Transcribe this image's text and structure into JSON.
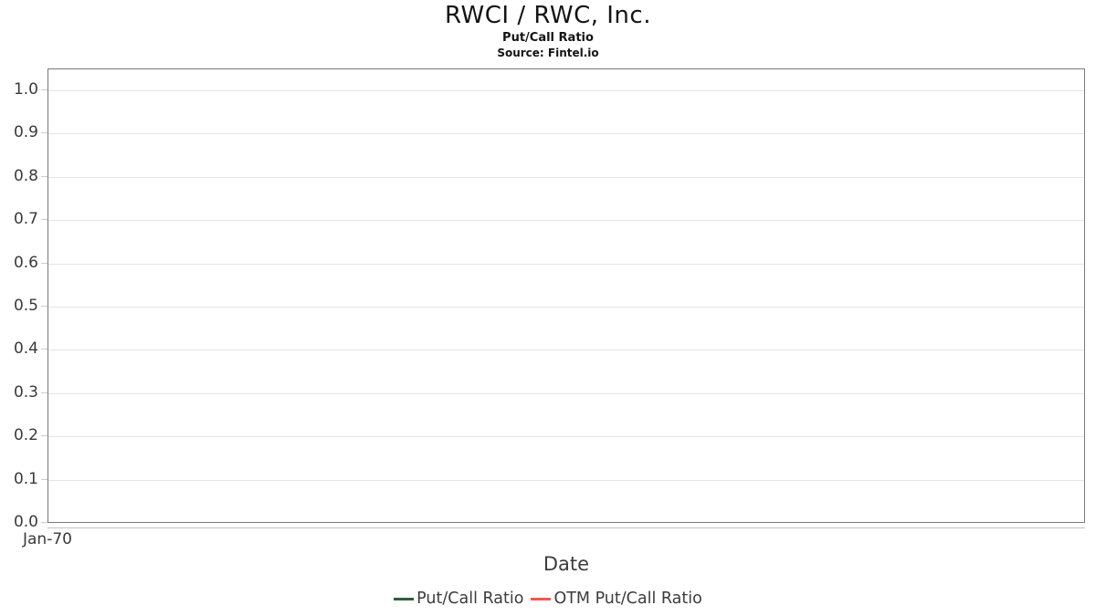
{
  "header": {
    "title": "RWCI / RWC, Inc.",
    "subtitle": "Put/Call Ratio",
    "source": "Source: Fintel.io"
  },
  "axes": {
    "xlabel": "Date",
    "x_tick": "Jan-70"
  },
  "legend": {
    "items": [
      {
        "label": "Put/Call Ratio",
        "color": "#2d5f3c"
      },
      {
        "label": "OTM Put/Call Ratio",
        "color": "#f4584e"
      }
    ]
  },
  "chart_data": {
    "type": "line",
    "title": "RWCI / RWC, Inc.",
    "subtitle": "Put/Call Ratio",
    "source": "Source: Fintel.io",
    "xlabel": "Date",
    "ylabel": "",
    "x_ticks": [
      "Jan-70"
    ],
    "y_ticks": [
      "0.0",
      "0.1",
      "0.2",
      "0.3",
      "0.4",
      "0.5",
      "0.6",
      "0.7",
      "0.8",
      "0.9",
      "1.0"
    ],
    "ylim": [
      0.0,
      1.05
    ],
    "grid": "horizontal",
    "legend_position": "bottom-center",
    "series": [
      {
        "name": "Put/Call Ratio",
        "color": "#2d5f3c",
        "x": [],
        "values": []
      },
      {
        "name": "OTM Put/Call Ratio",
        "color": "#f4584e",
        "x": [],
        "values": []
      }
    ]
  },
  "colors": {
    "plot_border": "#7a7a7a",
    "gridline": "#e5e5e5",
    "tick_mark": "#cccccc",
    "axis_subline": "#c4c4c4",
    "tick_text": "#3a3a3a",
    "title_text": "#141414"
  }
}
